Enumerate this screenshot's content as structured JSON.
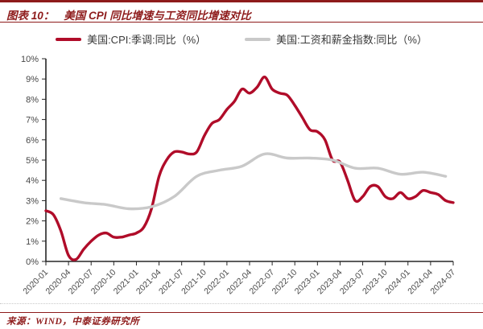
{
  "header": {
    "label": "图表 10：",
    "title": "美国 CPI 同比增速与工资同比增速对比"
  },
  "legend": {
    "items": [
      {
        "label": "美国:CPI:季调:同比（%）"
      },
      {
        "label": "美国:工资和薪金指数:同比（%）"
      }
    ]
  },
  "footer": {
    "source": "来源：WIND，中泰证券研究所"
  },
  "colors": {
    "cpi_line": "#b00c29",
    "wage_line": "#c9c9c9",
    "accent_red": "#8e1b1b",
    "axis": "#262626",
    "tick_label": "#474747",
    "legend_text": "#3a3a3a"
  },
  "chart_data": {
    "type": "line",
    "title": "美国 CPI 同比增速与工资同比增速对比",
    "grid": false,
    "legend_position": "top",
    "ylim": [
      0,
      10
    ],
    "y_tick_step": 1,
    "y_tick_suffix": "%",
    "x_months_span": 54,
    "x_tick_labels": [
      "2020-01",
      "2020-04",
      "2020-07",
      "2020-10",
      "2021-01",
      "2021-04",
      "2021-07",
      "2021-10",
      "2022-01",
      "2022-04",
      "2022-07",
      "2022-10",
      "2023-01",
      "2023-04",
      "2023-07",
      "2023-10",
      "2024-01",
      "2024-04",
      "2024-07"
    ],
    "series": [
      {
        "name": "美国:CPI:季调:同比（%）",
        "color": "#b00c29",
        "freq": "monthly",
        "start": "2020-01",
        "end": "2024-07",
        "month_offset": 0,
        "month_step": 1,
        "values": [
          2.5,
          2.3,
          1.5,
          0.3,
          0.1,
          0.6,
          1.0,
          1.3,
          1.4,
          1.2,
          1.2,
          1.3,
          1.4,
          1.7,
          2.6,
          4.2,
          5.0,
          5.4,
          5.4,
          5.3,
          5.4,
          6.2,
          6.8,
          7.0,
          7.5,
          7.9,
          8.5,
          8.3,
          8.6,
          9.1,
          8.5,
          8.3,
          8.2,
          7.7,
          7.1,
          6.5,
          6.4,
          6.0,
          5.0,
          4.9,
          4.0,
          3.0,
          3.2,
          3.7,
          3.7,
          3.2,
          3.1,
          3.4,
          3.1,
          3.2,
          3.5,
          3.4,
          3.3,
          3.0,
          2.9
        ]
      },
      {
        "name": "美国:工资和薪金指数:同比（%）",
        "color": "#c9c9c9",
        "freq": "quarterly",
        "start": "2020-03",
        "end": "2024-06",
        "month_offset": 2,
        "month_step": 3,
        "values": [
          3.1,
          2.9,
          2.8,
          2.6,
          2.7,
          3.2,
          4.2,
          4.5,
          4.7,
          5.3,
          5.1,
          5.1,
          5.0,
          4.6,
          4.6,
          4.3,
          4.4,
          4.2
        ]
      }
    ]
  }
}
